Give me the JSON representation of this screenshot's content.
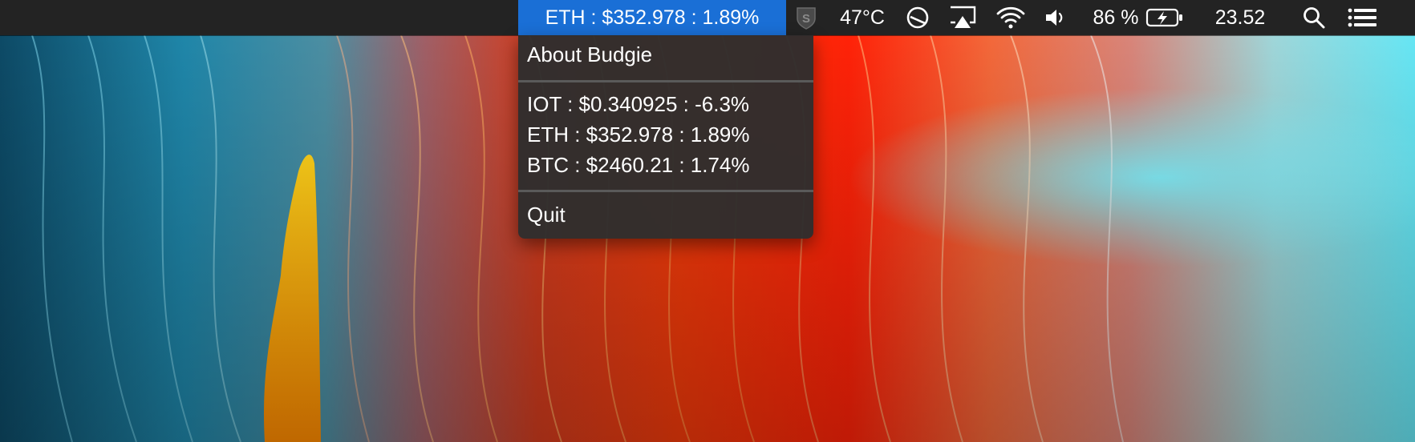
{
  "menubar": {
    "active_ticker": "ETH : $352.978 : 1.89%",
    "temperature": "47°C",
    "battery_percent": "86 %",
    "clock": "23.52",
    "icons": [
      "shield-s-icon",
      "disk-gauge-icon",
      "airplay-icon",
      "wifi-icon",
      "volume-icon",
      "battery-charging-icon",
      "search-icon",
      "menu-list-icon"
    ],
    "accent_color": "#1a6fd6",
    "background_color": "#232323"
  },
  "menu": {
    "about_label": "About Budgie",
    "tickers": [
      "IOT : $0.340925 : -6.3%",
      "ETH : $352.978 : 1.89%",
      "BTC : $2460.21 : 1.74%"
    ],
    "quit_label": "Quit"
  }
}
